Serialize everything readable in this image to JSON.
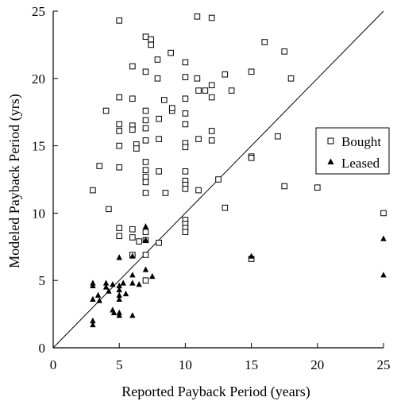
{
  "chart_data": {
    "type": "scatter",
    "title": "",
    "xlabel": "Reported Payback Period (years)",
    "ylabel": "Modeled Payback Period (yrs)",
    "xlim": [
      0,
      25
    ],
    "ylim": [
      0,
      25
    ],
    "xticks": [
      "0",
      "5",
      "10",
      "15",
      "20",
      "25"
    ],
    "yticks": [
      "0",
      "5",
      "10",
      "15",
      "20",
      "25"
    ],
    "grid": false,
    "reference_line": "y = x",
    "legend_position": "right",
    "series": [
      {
        "name": "Bought",
        "marker": "open-square",
        "color": "#000000",
        "points": [
          [
            5.0,
            24.3
          ],
          [
            7.0,
            23.1
          ],
          [
            7.4,
            22.9
          ],
          [
            7.4,
            22.5
          ],
          [
            8.9,
            21.9
          ],
          [
            7.9,
            21.4
          ],
          [
            10.0,
            21.2
          ],
          [
            6.0,
            20.9
          ],
          [
            7.0,
            20.5
          ],
          [
            7.9,
            20.0
          ],
          [
            10.0,
            20.1
          ],
          [
            5.0,
            18.6
          ],
          [
            6.0,
            18.5
          ],
          [
            8.4,
            18.4
          ],
          [
            10.0,
            18.5
          ],
          [
            4.0,
            17.6
          ],
          [
            7.0,
            17.6
          ],
          [
            9.0,
            17.6
          ],
          [
            9.0,
            17.8
          ],
          [
            10.0,
            17.4
          ],
          [
            6.0,
            16.5
          ],
          [
            7.0,
            16.9
          ],
          [
            8.0,
            17.0
          ],
          [
            5.0,
            16.6
          ],
          [
            5.0,
            16.1
          ],
          [
            6.0,
            16.2
          ],
          [
            7.0,
            16.3
          ],
          [
            10.0,
            16.6
          ],
          [
            5.0,
            15.0
          ],
          [
            6.3,
            15.1
          ],
          [
            6.3,
            14.8
          ],
          [
            7.0,
            15.4
          ],
          [
            8.0,
            15.5
          ],
          [
            10.0,
            15.2
          ],
          [
            10.0,
            14.9
          ],
          [
            3.5,
            13.5
          ],
          [
            5.0,
            13.4
          ],
          [
            7.0,
            13.8
          ],
          [
            7.0,
            13.2
          ],
          [
            8.0,
            13.1
          ],
          [
            10.0,
            13.1
          ],
          [
            7.0,
            12.7
          ],
          [
            7.0,
            12.3
          ],
          [
            10.0,
            12.4
          ],
          [
            10.0,
            12.1
          ],
          [
            3.0,
            11.7
          ],
          [
            7.0,
            11.5
          ],
          [
            8.5,
            11.5
          ],
          [
            10.0,
            11.8
          ],
          [
            4.2,
            10.3
          ],
          [
            5.0,
            8.9
          ],
          [
            5.0,
            8.3
          ],
          [
            6.0,
            8.8
          ],
          [
            6.0,
            8.2
          ],
          [
            6.5,
            7.9
          ],
          [
            7.0,
            8.0
          ],
          [
            7.0,
            8.6
          ],
          [
            8.0,
            7.8
          ],
          [
            10.0,
            9.5
          ],
          [
            10.0,
            9.2
          ],
          [
            10.0,
            8.9
          ],
          [
            10.0,
            8.6
          ],
          [
            6.0,
            6.9
          ],
          [
            7.0,
            6.9
          ],
          [
            7.0,
            5.0
          ],
          [
            10.9,
            24.6
          ],
          [
            12.0,
            24.5
          ],
          [
            10.9,
            20.0
          ],
          [
            11.0,
            19.1
          ],
          [
            11.5,
            19.1
          ],
          [
            12.0,
            19.5
          ],
          [
            12.0,
            18.6
          ],
          [
            13.0,
            20.3
          ],
          [
            13.5,
            19.1
          ],
          [
            15.0,
            20.5
          ],
          [
            16.0,
            22.7
          ],
          [
            17.5,
            22.0
          ],
          [
            18.0,
            20.0
          ],
          [
            11.0,
            15.5
          ],
          [
            12.0,
            16.1
          ],
          [
            12.0,
            15.4
          ],
          [
            17.0,
            15.7
          ],
          [
            15.0,
            14.2
          ],
          [
            15.0,
            14.1
          ],
          [
            12.5,
            12.5
          ],
          [
            11.0,
            11.7
          ],
          [
            17.5,
            12.0
          ],
          [
            20.0,
            11.9
          ],
          [
            13.0,
            10.4
          ],
          [
            15.0,
            6.6
          ],
          [
            25.0,
            10.0
          ]
        ]
      },
      {
        "name": "Leased",
        "marker": "filled-triangle",
        "color": "#000000",
        "points": [
          [
            3.0,
            4.8
          ],
          [
            3.0,
            4.6
          ],
          [
            3.0,
            3.6
          ],
          [
            3.0,
            2.0
          ],
          [
            3.0,
            1.7
          ],
          [
            3.4,
            3.9
          ],
          [
            3.5,
            3.5
          ],
          [
            4.0,
            4.8
          ],
          [
            4.0,
            4.5
          ],
          [
            4.2,
            4.2
          ],
          [
            4.5,
            4.7
          ],
          [
            4.5,
            2.8
          ],
          [
            4.6,
            2.6
          ],
          [
            5.0,
            4.6
          ],
          [
            5.0,
            4.3
          ],
          [
            5.0,
            3.9
          ],
          [
            5.0,
            3.6
          ],
          [
            5.0,
            2.6
          ],
          [
            5.0,
            2.4
          ],
          [
            5.0,
            6.7
          ],
          [
            5.3,
            4.8
          ],
          [
            5.5,
            4.0
          ],
          [
            6.0,
            5.4
          ],
          [
            6.0,
            4.8
          ],
          [
            6.0,
            2.4
          ],
          [
            6.0,
            6.8
          ],
          [
            6.5,
            4.7
          ],
          [
            7.0,
            9.0
          ],
          [
            7.0,
            8.0
          ],
          [
            7.0,
            5.8
          ],
          [
            7.5,
            5.3
          ],
          [
            15.0,
            6.8
          ],
          [
            25.0,
            8.1
          ],
          [
            25.0,
            5.4
          ]
        ]
      }
    ]
  },
  "legend": {
    "items": [
      {
        "label": "Bought",
        "icon": "open-square-icon"
      },
      {
        "label": "Leased",
        "icon": "filled-triangle-icon"
      }
    ]
  }
}
